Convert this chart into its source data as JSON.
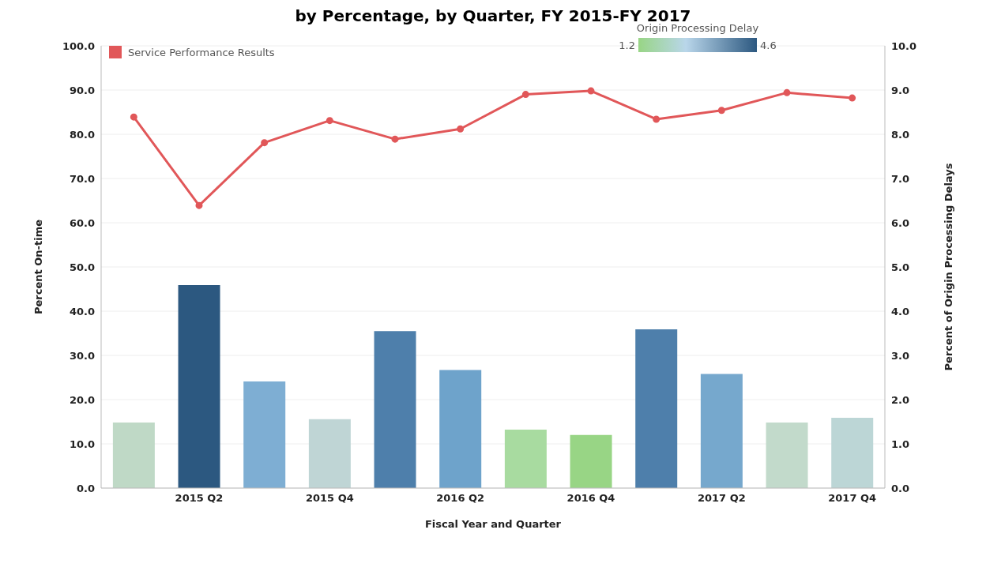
{
  "chart_data": {
    "type": "bar",
    "title": "by Percentage, by Quarter, FY 2015-FY 2017",
    "xlabel": "Fiscal Year and Quarter",
    "ylabel": "Percent On-time",
    "y2label": "Percent of Origin Processing Delays",
    "clabel": "Origin Processing Delay",
    "annotations": [
      "1.2",
      "4.6"
    ],
    "categories": [
      null,
      "2015 Q2",
      null,
      "2015 Q4",
      null,
      "2016 Q2",
      null,
      "2016 Q4",
      null,
      "2017 Q2",
      null,
      "2017 Q4"
    ],
    "series": [
      {
        "axis": "y2",
        "values": [
          1.48,
          4.59,
          2.41,
          1.56,
          3.55,
          2.67,
          1.32,
          1.2,
          3.59,
          2.58,
          1.48,
          1.59
        ],
        "colors": [
          "#bfd9c6",
          "#2c5880",
          "#7eaed3",
          "#bfd5d5",
          "#4e7fab",
          "#6ea3cb",
          "#a8dba0",
          "#98d585",
          "#4e7fab",
          "#76a8cd",
          "#c2dacb",
          "#bcd6d6"
        ]
      },
      {
        "type": "line",
        "axis": "y",
        "name": "Service Performance Results",
        "color": "#e15759",
        "values": [
          83.9,
          63.9,
          78.1,
          83.1,
          78.9,
          81.2,
          89.0,
          89.8,
          83.4,
          85.4,
          89.4,
          88.2
        ]
      }
    ],
    "ylim": [
      0,
      100
    ],
    "yticks": [
      {
        "value": 0,
        "label": "0.0"
      },
      {
        "value": 10,
        "label": "10.0"
      },
      {
        "value": 20,
        "label": "20.0"
      },
      {
        "value": 30,
        "label": "30.0"
      },
      {
        "value": 40,
        "label": "40.0"
      },
      {
        "value": 50,
        "label": "50.0"
      },
      {
        "value": 60,
        "label": "60.0"
      },
      {
        "value": 70,
        "label": "70.0"
      },
      {
        "value": 80,
        "label": "80.0"
      },
      {
        "value": 90,
        "label": "90.0"
      },
      {
        "value": 100,
        "label": "100.0"
      }
    ],
    "y2lim": [
      0,
      10
    ],
    "y2ticks": [
      {
        "value": 0,
        "label": "0.0"
      },
      {
        "value": 1,
        "label": "1.0"
      },
      {
        "value": 2,
        "label": "2.0"
      },
      {
        "value": 3,
        "label": "3.0"
      },
      {
        "value": 4,
        "label": "4.0"
      },
      {
        "value": 5,
        "label": "5.0"
      },
      {
        "value": 6,
        "label": "6.0"
      },
      {
        "value": 7,
        "label": "7.0"
      },
      {
        "value": 8,
        "label": "8.0"
      },
      {
        "value": 9,
        "label": "9.0"
      },
      {
        "value": 10,
        "label": "10.0"
      }
    ],
    "grid": "y",
    "legend": "top left",
    "marker": "circle",
    "line_style": "solid"
  }
}
